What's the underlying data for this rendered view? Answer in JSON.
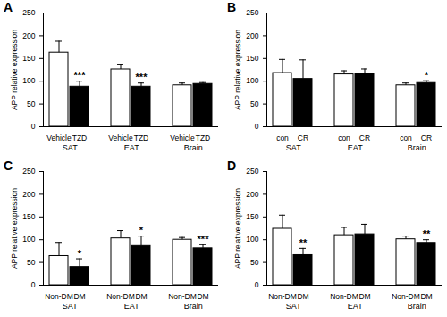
{
  "chart_data": [
    {
      "type": "bar",
      "title": "A",
      "ylabel": "APP relative expression",
      "categories": [
        "SAT",
        "EAT",
        "Brain"
      ],
      "series": [
        {
          "name": "Vehicle",
          "color": "#ffffff",
          "values": [
            163,
            126,
            91
          ],
          "errors": [
            25,
            10,
            5
          ],
          "significance": [
            null,
            null,
            null
          ]
        },
        {
          "name": "TZD",
          "color": "#000000",
          "values": [
            88,
            88,
            94
          ],
          "errors": [
            12,
            8,
            3
          ],
          "significance": [
            "***",
            "***",
            null
          ]
        }
      ],
      "ylim": [
        0,
        250
      ],
      "yticks": [
        0,
        50,
        100,
        150,
        200,
        250
      ]
    },
    {
      "type": "bar",
      "title": "B",
      "ylabel": "APP relative expression",
      "categories": [
        "SAT",
        "EAT",
        "Brain"
      ],
      "series": [
        {
          "name": "con",
          "color": "#ffffff",
          "values": [
            118,
            115,
            91
          ],
          "errors": [
            30,
            8,
            5
          ],
          "significance": [
            null,
            null,
            null
          ]
        },
        {
          "name": "CR",
          "color": "#000000",
          "values": [
            105,
            117,
            96
          ],
          "errors": [
            42,
            10,
            5
          ],
          "significance": [
            null,
            null,
            "*"
          ]
        }
      ],
      "ylim": [
        0,
        250
      ],
      "yticks": [
        0,
        50,
        100,
        150,
        200,
        250
      ]
    },
    {
      "type": "bar",
      "title": "C",
      "ylabel": "APP relative expression",
      "categories": [
        "SAT",
        "EAT",
        "Brain"
      ],
      "series": [
        {
          "name": "Non-DM",
          "color": "#ffffff",
          "values": [
            64,
            103,
            100
          ],
          "errors": [
            30,
            17,
            5
          ],
          "significance": [
            null,
            null,
            null
          ]
        },
        {
          "name": "DM",
          "color": "#000000",
          "values": [
            40,
            86,
            81
          ],
          "errors": [
            18,
            22,
            8
          ],
          "significance": [
            "*",
            "*",
            "***"
          ]
        }
      ],
      "ylim": [
        0,
        250
      ],
      "yticks": [
        0,
        50,
        100,
        150,
        200,
        250
      ]
    },
    {
      "type": "bar",
      "title": "D",
      "ylabel": "APP relative expression",
      "categories": [
        "SAT",
        "EAT",
        "Brain"
      ],
      "series": [
        {
          "name": "Non-DM",
          "color": "#ffffff",
          "values": [
            124,
            110,
            101
          ],
          "errors": [
            30,
            17,
            7
          ],
          "significance": [
            null,
            null,
            null
          ]
        },
        {
          "name": "DM",
          "color": "#000000",
          "values": [
            66,
            112,
            93
          ],
          "errors": [
            15,
            22,
            7
          ],
          "significance": [
            "**",
            null,
            "**"
          ]
        }
      ],
      "ylim": [
        0,
        250
      ],
      "yticks": [
        0,
        50,
        100,
        150,
        200,
        250
      ]
    }
  ]
}
